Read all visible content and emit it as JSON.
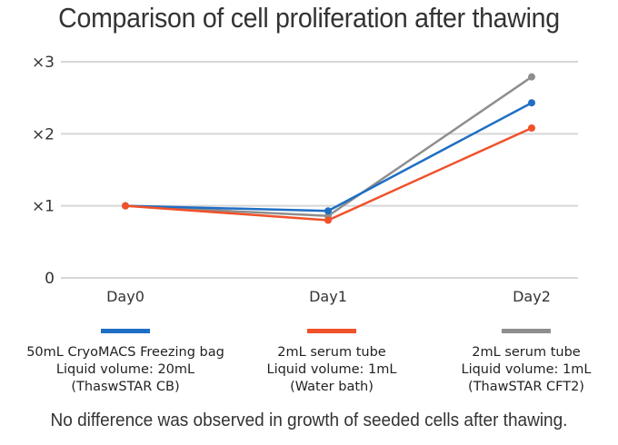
{
  "chart_data": {
    "type": "line",
    "title": "Comparison of cell proliferation after thawing",
    "xlabel": "",
    "ylabel": "",
    "categories": [
      "Day0",
      "Day1",
      "Day2"
    ],
    "yticks": [
      {
        "value": 0,
        "label": "0"
      },
      {
        "value": 1,
        "label": "×1"
      },
      {
        "value": 2,
        "label": "×2"
      },
      {
        "value": 3,
        "label": "×3"
      }
    ],
    "ylim": [
      0,
      3
    ],
    "grid": true,
    "legend_position": "bottom",
    "series": [
      {
        "name": "50mL CryoMACS Freezing bag / Liquid volume: 20mL / (ThaswSTAR CB)",
        "color": "#1f6ec4",
        "values": [
          1.0,
          0.93,
          2.43
        ]
      },
      {
        "name": "2mL serum tube / Liquid volume: 1mL / (Water bath)",
        "color": "#f0512a",
        "values": [
          1.0,
          0.8,
          2.08
        ]
      },
      {
        "name": "2mL serum tube / Liquid volume: 1mL / (ThawSTAR CFT2)",
        "color": "#8e8e8e",
        "values": [
          1.0,
          0.86,
          2.79
        ]
      }
    ],
    "draw_order": [
      2,
      0,
      1
    ]
  },
  "legend": [
    {
      "color": "#1f6ec4",
      "lines": [
        "50mL CryoMACS Freezing bag",
        "Liquid volume: 20mL",
        "(ThaswSTAR CB)"
      ]
    },
    {
      "color": "#f0512a",
      "lines": [
        "2mL serum tube",
        "Liquid volume: 1mL",
        "(Water bath)"
      ]
    },
    {
      "color": "#8e8e8e",
      "lines": [
        "2mL serum tube",
        "Liquid volume: 1mL",
        "(ThawSTAR CFT2)"
      ]
    }
  ],
  "footnote": "No difference was observed in growth of seeded cells after thawing."
}
